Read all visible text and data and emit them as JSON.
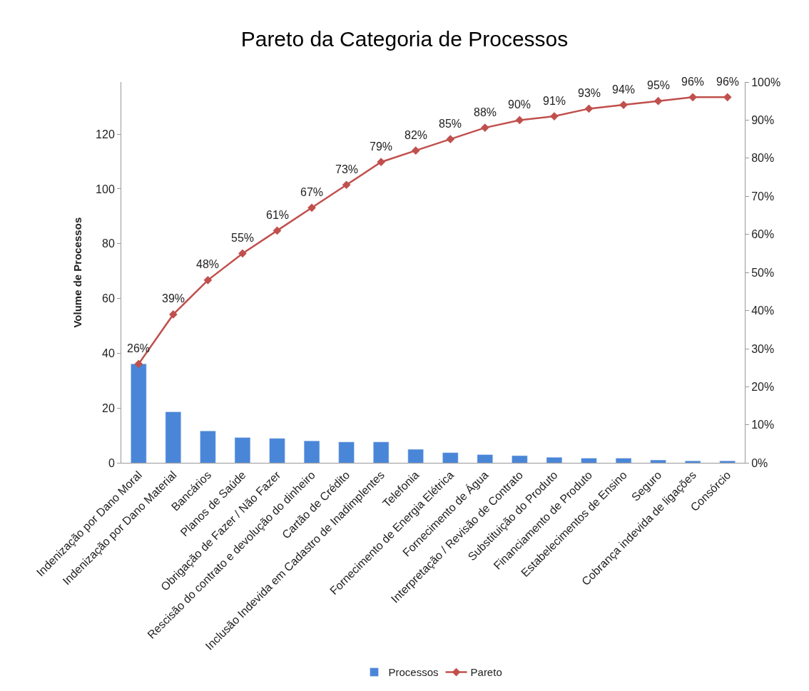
{
  "chart_data": {
    "type": "bar",
    "title": "Pareto da Categoria de Processos",
    "ylabel": "Volume de Processos",
    "categories": [
      "Indenização por Dano Moral",
      "Indenização por Dano Material",
      "Bancários",
      "Planos de Saúde",
      "Obrigação de Fazer / Não Fazer",
      "Rescisão do contrato e devolução do dinheiro",
      "Cartão de Crédito",
      "Inclusão Indevida em Cadastro de Inadimplentes",
      "Telefonia",
      "Fornecimento de Energia Elétrica",
      "Fornecimento de Água",
      "Interpretação / Revisão de Contrato",
      "Substituição do Produto",
      "Financiamento de Produto",
      "Estabelecimentos de Ensino",
      "Seguro",
      "Cobrança indevida de ligações",
      "Consórcio"
    ],
    "series": [
      {
        "name": "Processos",
        "color": "#4a86d8",
        "values": [
          36.2,
          18.7,
          11.7,
          9.3,
          9.0,
          8.1,
          7.7,
          7.7,
          5.0,
          3.8,
          3.1,
          2.7,
          2.1,
          1.8,
          1.8,
          1.1,
          0.8,
          0.8
        ]
      },
      {
        "name": "Pareto",
        "type": "line",
        "axis": "y2",
        "color": "#c0504d",
        "marker": "diamond",
        "value_labels": [
          "26%",
          "39%",
          "48%",
          "55%",
          "61%",
          "67%",
          "73%",
          "79%",
          "82%",
          "85%",
          "88%",
          "90%",
          "91%",
          "93%",
          "94%",
          "95%",
          "96%",
          "96%"
        ],
        "values": [
          26,
          39,
          48,
          55,
          61,
          67,
          73,
          79,
          82,
          85,
          88,
          90,
          91,
          93,
          94,
          95,
          96,
          96
        ]
      }
    ],
    "ylim": [
      0,
      139
    ],
    "yticks": [
      0,
      20,
      40,
      60,
      80,
      100,
      120
    ],
    "y2lim": [
      0,
      100
    ],
    "y2ticks": [
      {
        "value": 0,
        "label": "0%"
      },
      {
        "value": 10,
        "label": "10%"
      },
      {
        "value": 20,
        "label": "20%"
      },
      {
        "value": 30,
        "label": "30%"
      },
      {
        "value": 40,
        "label": "40%"
      },
      {
        "value": 50,
        "label": "50%"
      },
      {
        "value": 60,
        "label": "60%"
      },
      {
        "value": 70,
        "label": "70%"
      },
      {
        "value": 80,
        "label": "80%"
      },
      {
        "value": 90,
        "label": "90%"
      },
      {
        "value": 100,
        "label": "100%"
      }
    ],
    "legend": "bottom"
  }
}
